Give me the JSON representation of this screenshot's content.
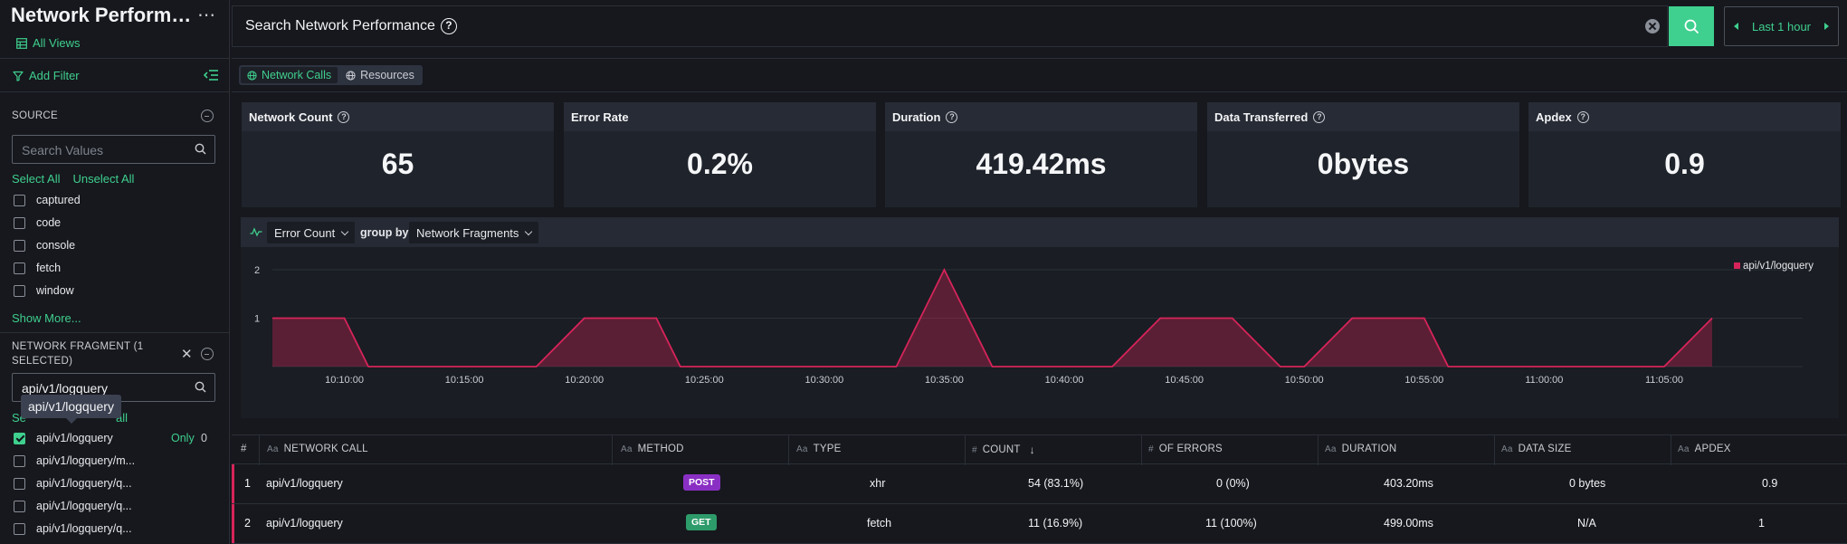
{
  "app": {
    "title": "Network Performance",
    "all_views": "All Views"
  },
  "sidebar": {
    "add_filter": "Add Filter",
    "source": {
      "title": "SOURCE",
      "search_placeholder": "Search Values",
      "select_all": "Select All",
      "unselect_all": "Unselect All",
      "items": [
        {
          "label": "captured",
          "checked": false
        },
        {
          "label": "code",
          "checked": false
        },
        {
          "label": "console",
          "checked": false
        },
        {
          "label": "fetch",
          "checked": false
        },
        {
          "label": "window",
          "checked": false
        }
      ],
      "show_more": "Show More..."
    },
    "fragment": {
      "title": "NETWORK FRAGMENT (1 SELECTED)",
      "search_value": "api/v1/logquery",
      "tooltip": "api/v1/logquery",
      "select_all_partial": "Se",
      "unselect_all_partial": "all",
      "only_label": "Only",
      "only_count": "0",
      "items": [
        {
          "label": "api/v1/logquery",
          "checked": true
        },
        {
          "label": "api/v1/logquery/m...",
          "checked": false
        },
        {
          "label": "api/v1/logquery/q...",
          "checked": false
        },
        {
          "label": "api/v1/logquery/q...",
          "checked": false
        },
        {
          "label": "api/v1/logquery/q...",
          "checked": false
        }
      ]
    }
  },
  "topbar": {
    "search_label": "Search Network Performance",
    "time_range": "Last 1 hour"
  },
  "tabs": [
    {
      "label": "Network Calls",
      "active": true
    },
    {
      "label": "Resources",
      "active": false
    }
  ],
  "metrics": [
    {
      "label": "Network Count",
      "value": "65",
      "help": true
    },
    {
      "label": "Error Rate",
      "value": "0.2%",
      "help": false
    },
    {
      "label": "Duration",
      "value": "419.42ms",
      "help": true
    },
    {
      "label": "Data Transferred",
      "value": "0bytes",
      "help": true
    },
    {
      "label": "Apdex",
      "value": "0.9",
      "help": true
    }
  ],
  "chart_toolbar": {
    "metric": "Error Count",
    "group_by_label": "group by",
    "group_by": "Network Fragments"
  },
  "chart_data": {
    "type": "area",
    "x": [
      "10:07",
      "10:08",
      "10:09",
      "10:10",
      "10:11",
      "10:12",
      "10:13",
      "10:14",
      "10:15",
      "10:16",
      "10:17",
      "10:18",
      "10:19",
      "10:20",
      "10:21",
      "10:22",
      "10:23",
      "10:24",
      "10:25",
      "10:26",
      "10:27",
      "10:28",
      "10:29",
      "10:30",
      "10:31",
      "10:32",
      "10:33",
      "10:34",
      "10:35",
      "10:36",
      "10:37",
      "10:38",
      "10:39",
      "10:40",
      "10:41",
      "10:42",
      "10:43",
      "10:44",
      "10:45",
      "10:46",
      "10:47",
      "10:48",
      "10:49",
      "10:50",
      "10:51",
      "10:52",
      "10:53",
      "10:54",
      "10:55",
      "10:56",
      "10:57",
      "10:58",
      "10:59",
      "11:00",
      "11:01",
      "11:02",
      "11:03",
      "11:04",
      "11:05",
      "11:06",
      "11:07"
    ],
    "series": [
      {
        "name": "api/v1/logquery",
        "color": "#d6245a",
        "values": [
          1,
          1,
          1,
          1,
          0,
          0,
          0,
          0,
          0,
          0,
          0,
          0,
          0.5,
          1,
          1,
          1,
          1,
          0,
          0,
          0,
          0,
          0,
          0,
          0,
          0,
          0,
          0,
          1,
          2,
          1,
          0,
          0,
          0,
          0,
          0,
          0,
          0.5,
          1,
          1,
          1,
          1,
          0.5,
          0,
          0,
          0.5,
          1,
          1,
          1,
          1,
          0,
          0,
          0,
          0,
          0,
          0,
          0,
          0,
          0,
          0,
          0.5,
          1
        ]
      }
    ],
    "x_ticks": [
      "10:10:00",
      "10:15:00",
      "10:20:00",
      "10:25:00",
      "10:30:00",
      "10:35:00",
      "10:40:00",
      "10:45:00",
      "10:50:00",
      "10:55:00",
      "11:00:00",
      "11:05:00"
    ],
    "y_ticks": [
      "1",
      "2"
    ],
    "ylim": [
      0,
      2
    ],
    "grid": true,
    "legend_position": "top-right"
  },
  "table": {
    "columns": [
      {
        "key": "#",
        "label": "#"
      },
      {
        "key": "call",
        "label": "NETWORK CALL",
        "icon": "Aa"
      },
      {
        "key": "method",
        "label": "METHOD",
        "icon": "Aa"
      },
      {
        "key": "type",
        "label": "TYPE",
        "icon": "Aa"
      },
      {
        "key": "count",
        "label": "COUNT",
        "icon": "#"
      },
      {
        "key": "errors",
        "label": "OF ERRORS",
        "icon": "#"
      },
      {
        "key": "duration",
        "label": "DURATION",
        "icon": "Aa"
      },
      {
        "key": "size",
        "label": "DATA SIZE",
        "icon": "Aa"
      },
      {
        "key": "apdex",
        "label": "APDEX",
        "icon": "Aa"
      }
    ],
    "rows": [
      {
        "idx": "1",
        "call": "api/v1/logquery",
        "method": "POST",
        "method_color": "#8a2fc4",
        "type": "xhr",
        "count": "54 (83.1%)",
        "errors": "0 (0%)",
        "duration": "403.20ms",
        "size": "0 bytes",
        "apdex": "0.9"
      },
      {
        "idx": "2",
        "call": "api/v1/logquery",
        "method": "GET",
        "method_color": "#2e9b6a",
        "type": "fetch",
        "count": "11 (16.9%)",
        "errors": "11 (100%)",
        "duration": "499.00ms",
        "size": "N/A",
        "apdex": "1"
      }
    ]
  },
  "colors": {
    "accent": "#3fcf8e",
    "series": "#d6245a"
  }
}
